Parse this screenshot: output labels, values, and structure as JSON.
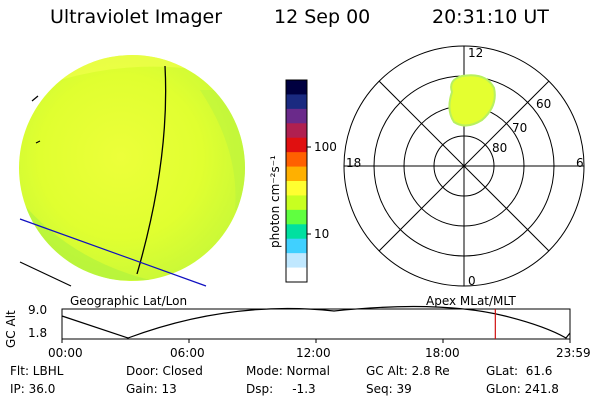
{
  "header": {
    "instrument": "Ultraviolet Imager",
    "date": "12 Sep 00",
    "time": "20:31:10 UT"
  },
  "colorbar": {
    "unit_label": "photon cm⁻²s⁻¹",
    "ticks": [
      "100",
      "10"
    ],
    "colors": [
      "#000040",
      "#1a2a80",
      "#6a2a8a",
      "#b02050",
      "#e01010",
      "#ff6000",
      "#ffb000",
      "#ffff30",
      "#c8ff20",
      "#60ff40",
      "#00e0a0",
      "#40d0ff",
      "#c0e8ff",
      "#ffffff"
    ]
  },
  "polar_plot": {
    "mlt_labels": {
      "top": "12",
      "bottom": "0",
      "left": "18",
      "right": "6"
    },
    "lat_labels": [
      "60",
      "70",
      "80"
    ]
  },
  "labels": {
    "left_bottom": "Geographic Lat/Lon",
    "right_bottom": "Apex MLat/MLT"
  },
  "altitude_plot": {
    "ylabel": "GC Alt",
    "yticks": [
      "9.0",
      "1.8"
    ],
    "xticks": [
      "00:00",
      "06:00",
      "12:00",
      "18:00",
      "23:59"
    ],
    "current_time_fraction": 0.853
  },
  "info": {
    "row1": {
      "filter": "Flt: LBHL",
      "door": "Door: Closed",
      "mode": "Mode: Normal",
      "gc_alt": "GC Alt: 2.8 Re",
      "glat": "GLat:  61.6"
    },
    "row2": {
      "ip": "IP: 36.0",
      "gain": "Gain: 13",
      "dsp": "Dsp:     -1.3",
      "seq": "Seq: 39",
      "glon": "GLon: 241.8"
    }
  }
}
